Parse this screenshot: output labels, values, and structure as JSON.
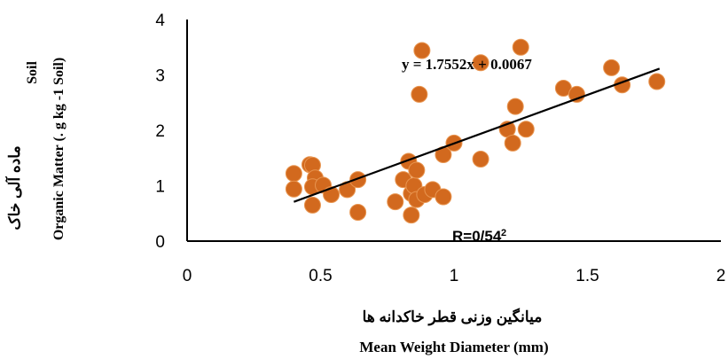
{
  "chart_data": {
    "type": "scatter",
    "xlabel_fa": "میانگین وزنی قطر خاکدانه ها",
    "xlabel_en": "Mean Weight Diameter (mm)",
    "ylabel_fa": "ماده آلی خاک",
    "ylabel_soil": "Soil",
    "ylabel_en": "Organic Matter (. g kg -1 Soil)",
    "equation": "y = 1.7552x + 0.0067",
    "r2_label": "R=0/54",
    "r2_sup": "2",
    "xlim": [
      0,
      2
    ],
    "ylim": [
      0,
      4
    ],
    "x_ticks": [
      0,
      0.5,
      1,
      1.5,
      2
    ],
    "x_tick_labels": [
      "0",
      "0.5",
      "1",
      "1.5",
      "2"
    ],
    "y_ticks": [
      0,
      1,
      2,
      3,
      4
    ],
    "y_tick_labels": [
      "0",
      "1",
      "2",
      "3",
      "4"
    ],
    "trendline": {
      "slope": 1.7552,
      "intercept": 0.0067,
      "x_range": [
        0.4,
        1.77
      ]
    },
    "marker_color": "#D2691E",
    "marker_edge": "#E89550",
    "line_color": "#000000",
    "points": [
      {
        "x": 0.4,
        "y": 1.22
      },
      {
        "x": 0.4,
        "y": 0.94
      },
      {
        "x": 0.46,
        "y": 1.38
      },
      {
        "x": 0.47,
        "y": 1.37
      },
      {
        "x": 0.48,
        "y": 1.14
      },
      {
        "x": 0.47,
        "y": 0.98
      },
      {
        "x": 0.47,
        "y": 0.65
      },
      {
        "x": 0.51,
        "y": 1.01
      },
      {
        "x": 0.54,
        "y": 0.84
      },
      {
        "x": 0.6,
        "y": 0.93
      },
      {
        "x": 0.64,
        "y": 1.11
      },
      {
        "x": 0.64,
        "y": 0.52
      },
      {
        "x": 0.78,
        "y": 0.71
      },
      {
        "x": 0.81,
        "y": 1.11
      },
      {
        "x": 0.83,
        "y": 1.44
      },
      {
        "x": 0.84,
        "y": 0.86
      },
      {
        "x": 0.85,
        "y": 1.0
      },
      {
        "x": 0.86,
        "y": 1.28
      },
      {
        "x": 0.86,
        "y": 0.75
      },
      {
        "x": 0.84,
        "y": 0.47
      },
      {
        "x": 0.88,
        "y": 3.44
      },
      {
        "x": 0.87,
        "y": 2.65
      },
      {
        "x": 0.89,
        "y": 0.84
      },
      {
        "x": 0.92,
        "y": 0.93
      },
      {
        "x": 0.96,
        "y": 0.8
      },
      {
        "x": 0.96,
        "y": 1.56
      },
      {
        "x": 1.0,
        "y": 1.77
      },
      {
        "x": 1.1,
        "y": 1.48
      },
      {
        "x": 1.1,
        "y": 3.22
      },
      {
        "x": 1.2,
        "y": 2.02
      },
      {
        "x": 1.22,
        "y": 1.77
      },
      {
        "x": 1.23,
        "y": 2.43
      },
      {
        "x": 1.25,
        "y": 3.5
      },
      {
        "x": 1.27,
        "y": 2.02
      },
      {
        "x": 1.41,
        "y": 2.76
      },
      {
        "x": 1.46,
        "y": 2.65
      },
      {
        "x": 1.59,
        "y": 3.13
      },
      {
        "x": 1.63,
        "y": 2.82
      },
      {
        "x": 1.76,
        "y": 2.88
      }
    ]
  }
}
